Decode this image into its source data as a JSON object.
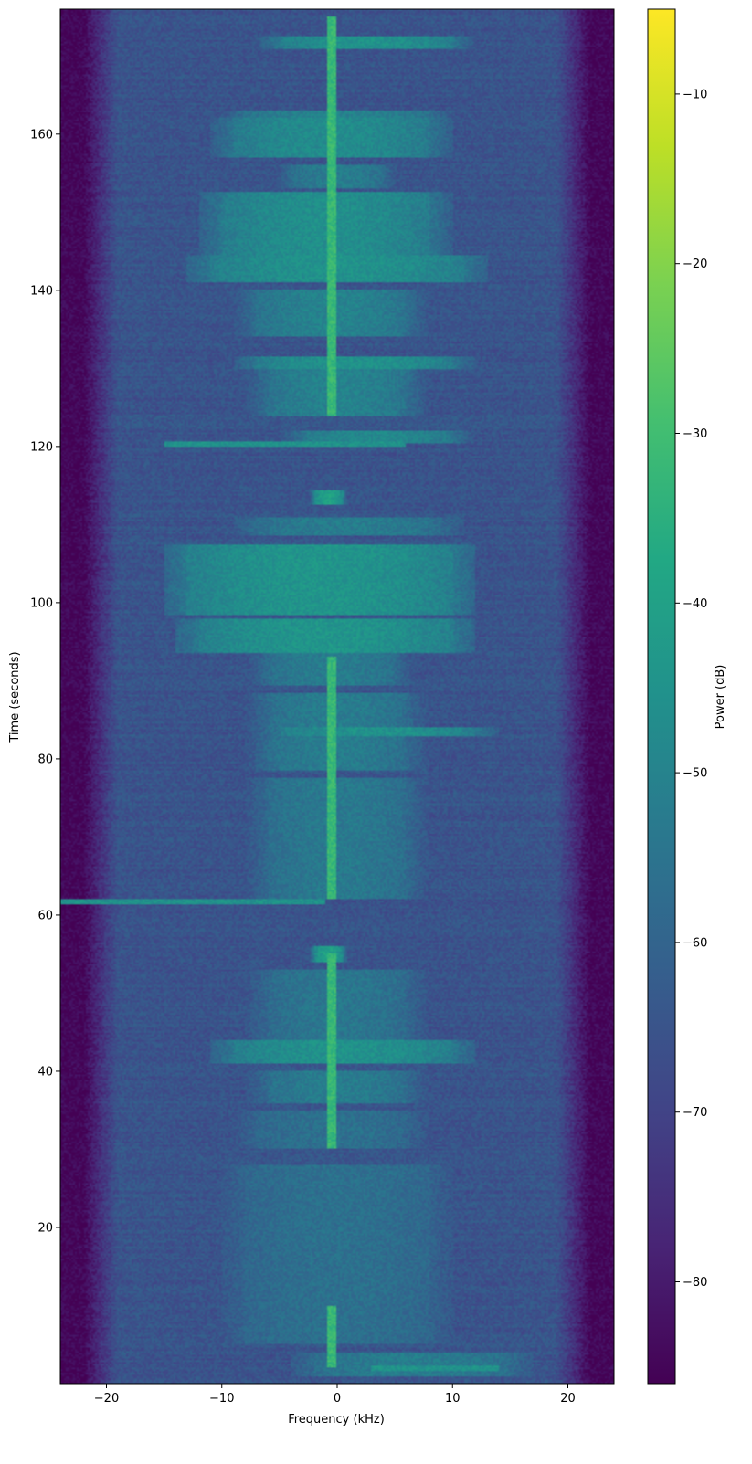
{
  "chart_data": {
    "type": "heatmap",
    "title": "",
    "xlabel": "Frequency (kHz)",
    "ylabel": "Time (seconds)",
    "xlim": [
      -24,
      24
    ],
    "ylim": [
      0,
      176
    ],
    "x_ticks": [
      -20,
      -10,
      0,
      10,
      20
    ],
    "x_tick_labels": [
      "−20",
      "−10",
      "0",
      "10",
      "20"
    ],
    "y_ticks": [
      20,
      40,
      60,
      80,
      100,
      120,
      140,
      160
    ],
    "y_tick_labels": [
      "20",
      "40",
      "60",
      "80",
      "100",
      "120",
      "140",
      "160"
    ],
    "grid": false,
    "colormap": "viridis",
    "colorbar": {
      "label": "Power (dB)",
      "range": [
        -86,
        -5
      ],
      "ticks": [
        -10,
        -20,
        -30,
        -40,
        -50,
        -60,
        -70,
        -80
      ],
      "tick_labels": [
        "−10",
        "−20",
        "−30",
        "−40",
        "−50",
        "−60",
        "−70",
        "−80"
      ]
    },
    "baseline_power_db": -65,
    "edge_power_db": -85,
    "passband_khz": [
      -19,
      19
    ],
    "bursts": [
      {
        "t": [
          171,
          172.5
        ],
        "x": [
          -5,
          10
        ],
        "db": -45
      },
      {
        "t": [
          162,
          163
        ],
        "x": [
          -8,
          8
        ],
        "db": -50
      },
      {
        "t": [
          157,
          162
        ],
        "x": [
          -9,
          8
        ],
        "db": -47
      },
      {
        "t": [
          153,
          156
        ],
        "x": [
          -4,
          4
        ],
        "db": -52
      },
      {
        "t": [
          144.5,
          152.5
        ],
        "x": [
          -10,
          8
        ],
        "db": -46
      },
      {
        "t": [
          141,
          144.5
        ],
        "x": [
          -11,
          11
        ],
        "db": -45
      },
      {
        "t": [
          134,
          140
        ],
        "x": [
          -7,
          6
        ],
        "db": -50
      },
      {
        "t": [
          130,
          131.5
        ],
        "x": [
          -7,
          10
        ],
        "db": -45
      },
      {
        "t": [
          124,
          130
        ],
        "x": [
          -6,
          6
        ],
        "db": -50
      },
      {
        "t": [
          120.5,
          122
        ],
        "x": [
          -3,
          10
        ],
        "db": -48
      },
      {
        "t": [
          112.5,
          114.5
        ],
        "x": [
          -2,
          0.5
        ],
        "db": -40
      },
      {
        "t": [
          108.5,
          111
        ],
        "x": [
          -7,
          9
        ],
        "db": -52
      },
      {
        "t": [
          98.5,
          107.5
        ],
        "x": [
          -13,
          10
        ],
        "db": -44
      },
      {
        "t": [
          93.5,
          98
        ],
        "x": [
          -12,
          10
        ],
        "db": -44
      },
      {
        "t": [
          89.5,
          93.5
        ],
        "x": [
          -6,
          5
        ],
        "db": -52
      },
      {
        "t": [
          83,
          84
        ],
        "x": [
          -5,
          12
        ],
        "db": -45
      },
      {
        "t": [
          78.5,
          88.5
        ],
        "x": [
          -6,
          6
        ],
        "db": -52
      },
      {
        "t": [
          62,
          77.5
        ],
        "x": [
          -6,
          6
        ],
        "db": -53
      },
      {
        "t": [
          54,
          56
        ],
        "x": [
          -2,
          0.5
        ],
        "db": -40
      },
      {
        "t": [
          44,
          53
        ],
        "x": [
          -6,
          6
        ],
        "db": -54
      },
      {
        "t": [
          41,
          44
        ],
        "x": [
          -9,
          10
        ],
        "db": -45
      },
      {
        "t": [
          36,
          40
        ],
        "x": [
          -6,
          6
        ],
        "db": -52
      },
      {
        "t": [
          30,
          35
        ],
        "x": [
          -7,
          6
        ],
        "db": -56
      },
      {
        "t": [
          5,
          28
        ],
        "x": [
          -8,
          8
        ],
        "db": -56
      },
      {
        "t": [
          1,
          4
        ],
        "x": [
          -2,
          15
        ],
        "db": -52
      }
    ],
    "streaks": [
      {
        "t": 120.2,
        "x": [
          -15,
          6
        ],
        "db": -45
      },
      {
        "t": 61.8,
        "x": [
          -24,
          -1
        ],
        "db": -45
      },
      {
        "t": 2,
        "x": [
          3,
          14
        ],
        "db": -45
      }
    ],
    "carrier": {
      "x": -0.5,
      "t_ranges": [
        [
          2,
          10
        ],
        [
          30,
          55
        ],
        [
          62,
          93
        ],
        [
          124,
          175
        ]
      ],
      "db": -32
    }
  }
}
